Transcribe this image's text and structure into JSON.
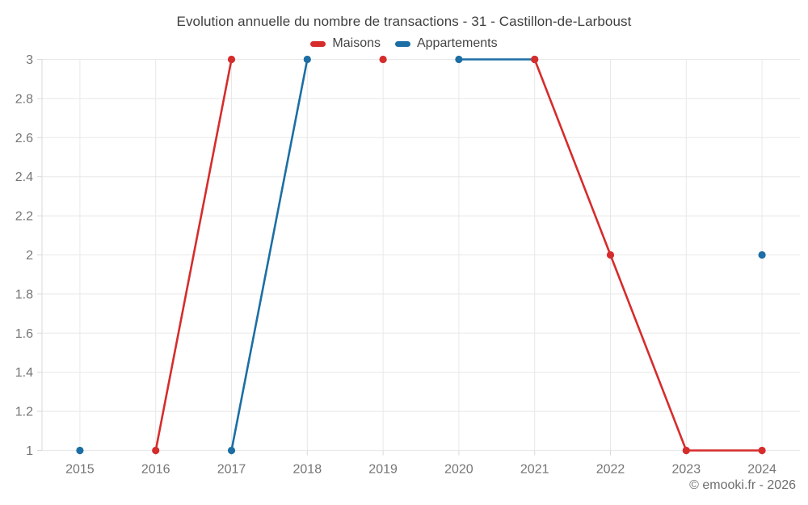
{
  "watermark": "© emooki.fr - 2026",
  "chart_data": {
    "type": "line",
    "title": "Evolution annuelle du nombre de transactions - 31 - Castillon-de-Larboust",
    "categories": [
      "2015",
      "2016",
      "2017",
      "2018",
      "2019",
      "2020",
      "2021",
      "2022",
      "2023",
      "2024"
    ],
    "series": [
      {
        "name": "Maisons",
        "color": "#d62c2c",
        "values": [
          null,
          1,
          3,
          null,
          3,
          null,
          3,
          2,
          1,
          1
        ]
      },
      {
        "name": "Appartements",
        "color": "#1c6ea4",
        "values": [
          1,
          null,
          1,
          3,
          null,
          3,
          3,
          null,
          null,
          2
        ]
      }
    ],
    "ylim": [
      1,
      3
    ],
    "yticks": [
      1,
      1.2,
      1.4,
      1.6,
      1.8,
      2,
      2.2,
      2.4,
      2.6,
      2.8,
      3
    ],
    "grid": true,
    "legend_position": "top",
    "xlabel": "",
    "ylabel": "",
    "marker": "circle",
    "colors": {
      "grid": "#e8e8e8",
      "axis": "#d9d9d9",
      "tick_label": "#757575",
      "title": "#3f3f3f",
      "legend_text": "#454545",
      "watermark": "#6e6e6e"
    }
  }
}
